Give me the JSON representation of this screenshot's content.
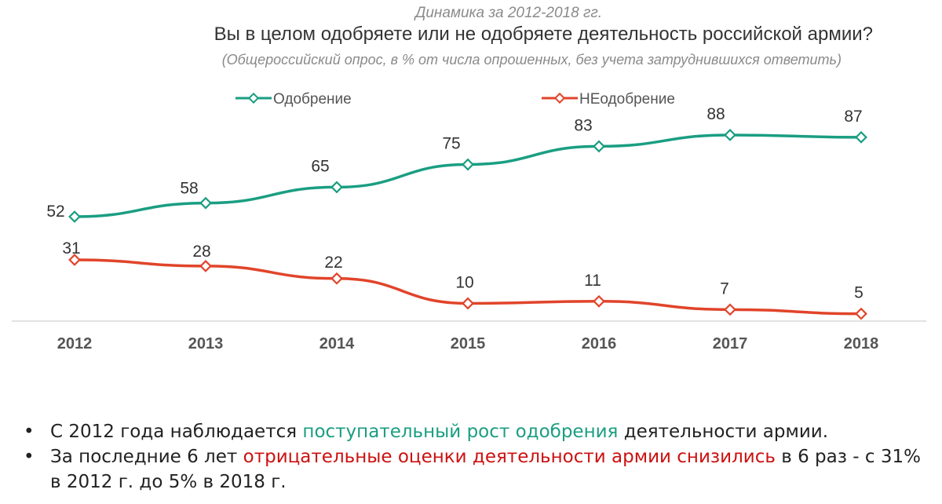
{
  "header": {
    "subtitle_top": "Динамика за 2012-2018 гг.",
    "title": "Вы в целом одобряете или не одобряете деятельность российской армии?",
    "note": "(Общероссийский опрос, в % от числа опрошенных, без учета затруднившихся ответить)"
  },
  "chart_data": {
    "type": "line",
    "x": [
      "2012",
      "2013",
      "2014",
      "2015",
      "2016",
      "2017",
      "2018"
    ],
    "series": [
      {
        "name": "Одобрение",
        "color": "#1a9e82",
        "values": [
          52,
          58,
          65,
          75,
          83,
          88,
          87
        ]
      },
      {
        "name": "НЕодобрение",
        "color": "#e1442a",
        "values": [
          31,
          28,
          22,
          10,
          11,
          7,
          5
        ]
      }
    ],
    "ylim": [
      0,
      100
    ],
    "grid": false,
    "legend": "top-left",
    "data_labels": true
  },
  "bullets": [
    {
      "dot": "•",
      "parts": [
        {
          "text": "С 2012 года наблюдается ",
          "style": "normal"
        },
        {
          "text": "поступательный рост одобрения",
          "style": "green"
        },
        {
          "text": " деятельности армии.",
          "style": "normal"
        }
      ]
    },
    {
      "dot": "•",
      "parts": [
        {
          "text": "За последние 6 лет ",
          "style": "normal"
        },
        {
          "text": "отрицательные оценки деятельности армии снизились",
          "style": "red"
        },
        {
          "text": " в 6 раз  - с 31% в 2012 г. до 5% в 2018 г.",
          "style": "normal"
        }
      ]
    }
  ]
}
